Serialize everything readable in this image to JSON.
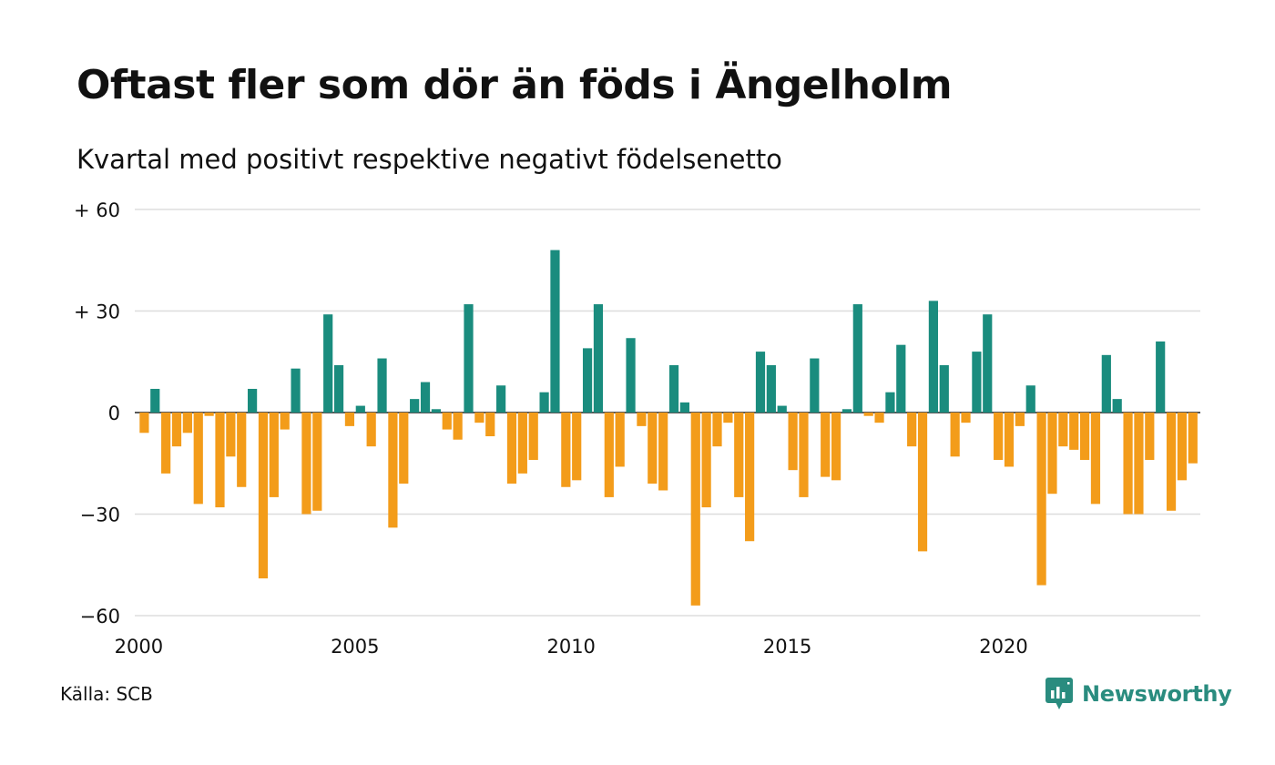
{
  "header": {
    "title": "Oftast fler som dör än föds i Ängelholm",
    "subtitle": "Kvartal med positivt respektive negativt födelsenetto"
  },
  "footer": {
    "source": "Källa: SCB",
    "brand": "Newsworthy"
  },
  "colors": {
    "positive": "#1a8c7e",
    "negative": "#f39c1a",
    "grid": "#dddddd",
    "brand": "#2a8c7f"
  },
  "icons": {
    "brand": "bar-chart-speech-bubble-icon"
  },
  "chart_data": {
    "type": "bar",
    "title": "Oftast fler som dör än föds i Ängelholm",
    "subtitle": "Kvartal med positivt respektive negativt födelsenetto",
    "xlabel": "",
    "ylabel": "",
    "ylim": [
      -60,
      60
    ],
    "y_ticks": [
      60,
      30,
      0,
      -30,
      -60
    ],
    "y_tick_labels": [
      "+ 60",
      "+ 30",
      "0",
      "−30",
      "−60"
    ],
    "x_ticks": [
      2000,
      2005,
      2010,
      2015,
      2020
    ],
    "x_tick_labels": [
      "2000",
      "2005",
      "2010",
      "2015",
      "2020"
    ],
    "grid": true,
    "legend": "none",
    "first_quarter": "2000Q1",
    "series": [
      {
        "values": [
          -6,
          7,
          -18,
          -10,
          -6,
          -27,
          -1,
          -28,
          -13,
          -22,
          7,
          -49,
          -25,
          -5,
          13,
          -30,
          -29,
          29,
          14,
          -4,
          2,
          -10,
          16,
          -34,
          -21,
          4,
          9,
          1,
          -5,
          -8,
          32,
          -3,
          -7,
          8,
          -21,
          -18,
          -14,
          6,
          48,
          -22,
          -20,
          19,
          32,
          -25,
          -16,
          22,
          -4,
          -21,
          -23,
          14,
          3,
          -57,
          -28,
          -10,
          -3,
          -25,
          -38,
          18,
          14,
          2,
          -17,
          -25,
          16,
          -19,
          -20,
          1,
          32,
          -1,
          -3,
          6,
          20,
          -10,
          -41,
          33,
          14,
          -13,
          -3,
          18,
          29,
          -14,
          -16,
          -4,
          8,
          -51,
          -24,
          -10,
          -11,
          -14,
          -27,
          17,
          4,
          -30,
          -30,
          -14,
          21,
          -29,
          -20,
          -15
        ]
      }
    ]
  }
}
